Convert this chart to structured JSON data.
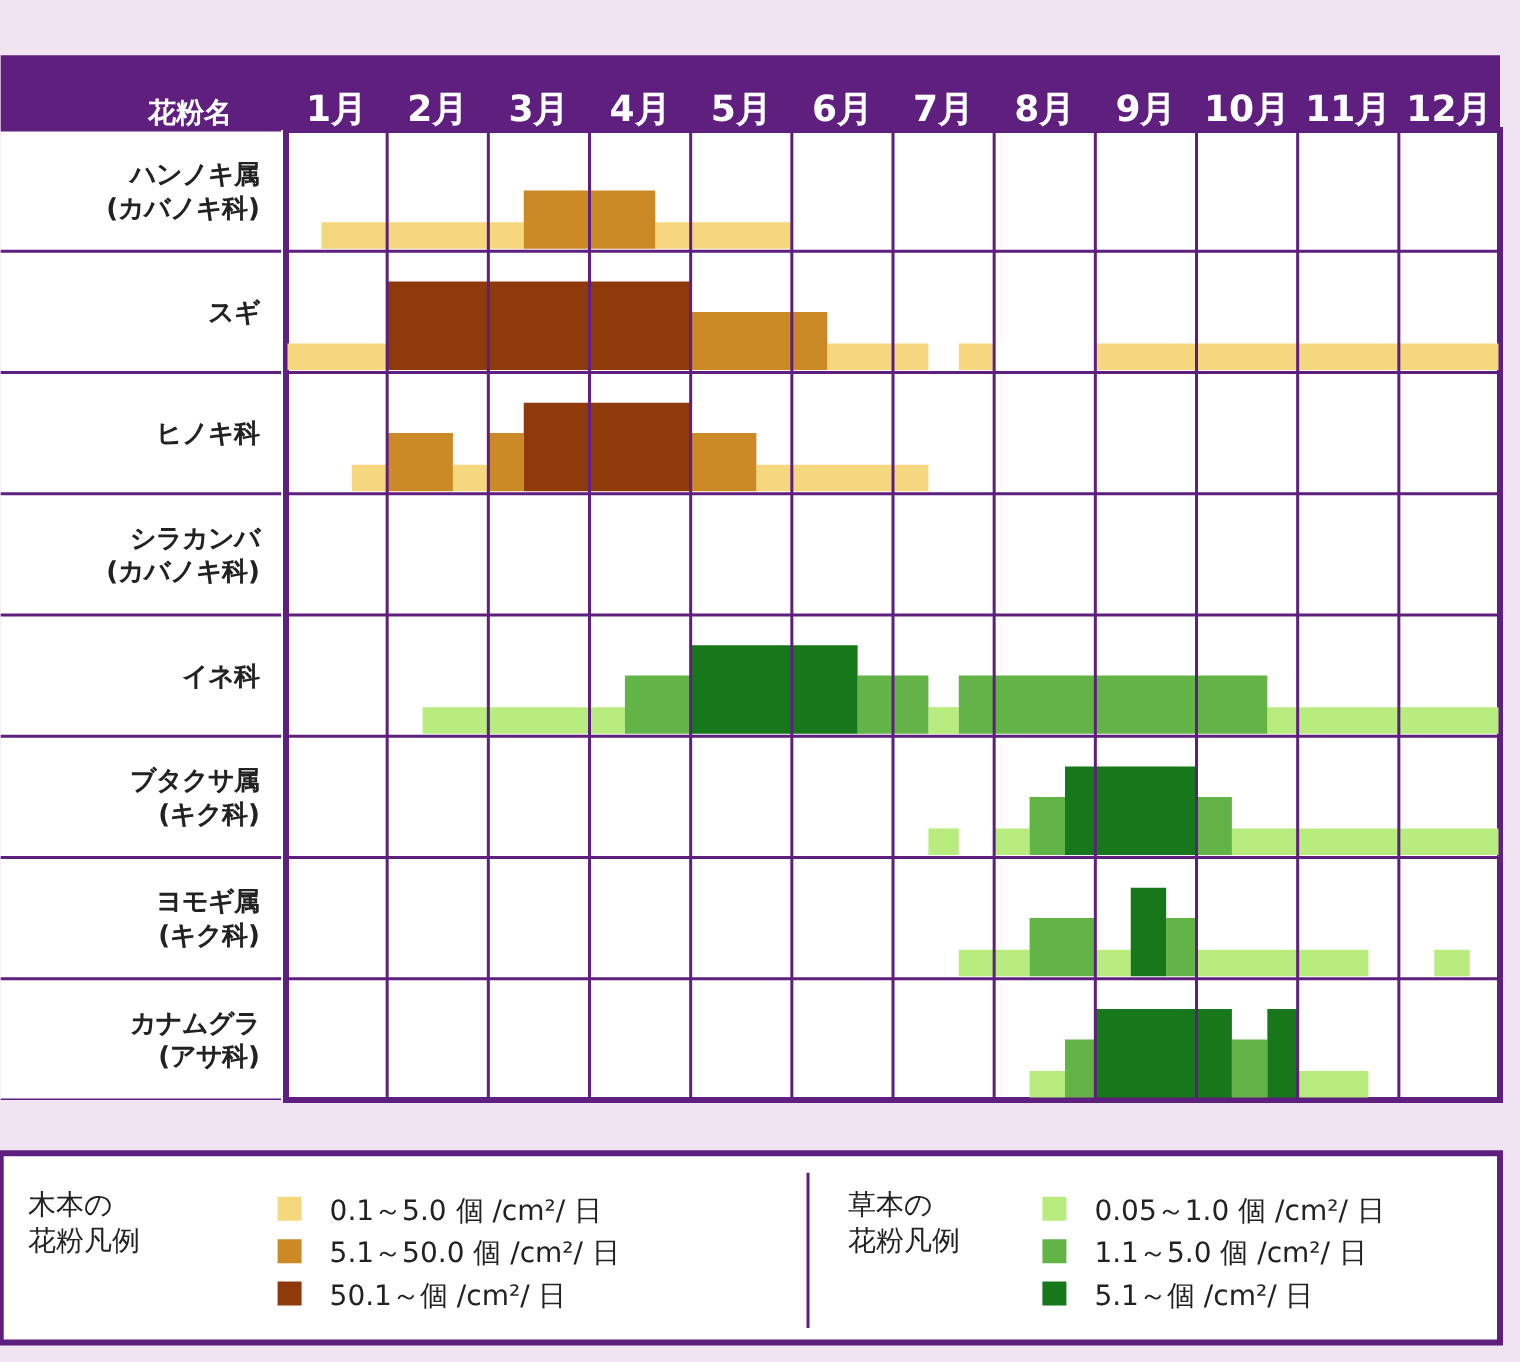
{
  "chart_data": {
    "type": "bar",
    "orientation": "horizontal",
    "ylabel": "花粉名",
    "categories": [
      "ハンノキ属\n(カバノキ科)",
      "スギ",
      "ヒノキ科",
      "シラカンバ\n(カバノキ科)",
      "イネ科",
      "ブタクサ属\n(キク科)",
      "ヨモギ属\n(キク科)",
      "カナムグラ\n(アサ科)"
    ],
    "xlim": [
      0.5,
      12.5
    ],
    "xticks": [
      {
        "value": 0.5,
        "label": null
      },
      {
        "value": 1,
        "label": "1月"
      },
      {
        "value": 1.5,
        "label": null
      },
      {
        "value": 2,
        "label": "2月"
      },
      {
        "value": 2.5,
        "label": null
      },
      {
        "value": 3,
        "label": "3月"
      },
      {
        "value": 3.5,
        "label": null
      },
      {
        "value": 4,
        "label": "4月"
      },
      {
        "value": 4.5,
        "label": null
      },
      {
        "value": 5,
        "label": "5月"
      },
      {
        "value": 5.5,
        "label": null
      },
      {
        "value": 6,
        "label": "6月"
      },
      {
        "value": 6.5,
        "label": null
      },
      {
        "value": 7,
        "label": "7月"
      },
      {
        "value": 7.5,
        "label": null
      },
      {
        "value": 8,
        "label": "8月"
      },
      {
        "value": 8.5,
        "label": null
      },
      {
        "value": 9,
        "label": "9月"
      },
      {
        "value": 9.5,
        "label": null
      },
      {
        "value": 10,
        "label": "10月"
      },
      {
        "value": 10.5,
        "label": null
      },
      {
        "value": 11,
        "label": "11月"
      },
      {
        "value": 11.5,
        "label": null
      },
      {
        "value": 12,
        "label": "12月"
      },
      {
        "value": 12.5,
        "label": null
      }
    ],
    "series": [
      {
        "name": "0.1～5.0 個 /cm²/ 日",
        "color": "#f5d77e",
        "base": [
          0.85,
          0.5,
          1.15,
          null,
          null,
          null,
          null,
          null
        ],
        "values": [
          2.0,
          1.0,
          0.35,
          null,
          null,
          null,
          null,
          null
        ]
      },
      {
        "color": "#f5d77e",
        "base": [
          4.15,
          5.85,
          2.15,
          null,
          null,
          null,
          null,
          null
        ],
        "values": [
          1.35,
          1.0,
          0.35,
          null,
          null,
          null,
          null,
          null
        ]
      },
      {
        "color": "#f5d77e",
        "base": [
          null,
          7.15,
          5.15,
          null,
          null,
          null,
          null,
          null
        ],
        "values": [
          null,
          0.35,
          1.7,
          null,
          null,
          null,
          null,
          null
        ]
      },
      {
        "color": "#f5d77e",
        "base": [
          null,
          8.5,
          null,
          null,
          null,
          null,
          null,
          null
        ],
        "values": [
          null,
          4.0,
          null,
          null,
          null,
          null,
          null,
          null
        ]
      },
      {
        "name": "5.1～50.0 個 /cm²/ 日",
        "color": "#cc8a26",
        "base": [
          2.85,
          4.5,
          1.5,
          null,
          null,
          null,
          null,
          null
        ],
        "values": [
          1.3,
          1.35,
          0.65,
          null,
          null,
          null,
          null,
          null
        ]
      },
      {
        "color": "#cc8a26",
        "base": [
          null,
          null,
          2.5,
          null,
          null,
          null,
          null,
          null
        ],
        "values": [
          null,
          null,
          0.35,
          null,
          null,
          null,
          null,
          null
        ]
      },
      {
        "color": "#cc8a26",
        "base": [
          null,
          null,
          4.5,
          null,
          null,
          null,
          null,
          null
        ],
        "values": [
          null,
          null,
          0.65,
          null,
          null,
          null,
          null,
          null
        ]
      },
      {
        "name": "50.1～個 /cm²/ 日",
        "color": "#8e3a0a",
        "base": [
          null,
          1.5,
          2.85,
          null,
          null,
          null,
          null,
          null
        ],
        "values": [
          null,
          3.0,
          1.65,
          null,
          null,
          null,
          null,
          null
        ]
      },
      {
        "name": "0.05～1.0 個 /cm²/ 日",
        "color": "#b9ec7e",
        "base": [
          null,
          null,
          null,
          null,
          1.85,
          6.85,
          7.15,
          7.85
        ],
        "values": [
          null,
          null,
          null,
          null,
          2.0,
          0.3,
          0.7,
          0.35
        ]
      },
      {
        "color": "#b9ec7e",
        "base": [
          null,
          null,
          null,
          null,
          6.85,
          7.5,
          8.5,
          10.5
        ],
        "values": [
          null,
          null,
          null,
          null,
          0.3,
          0.35,
          0.35,
          0.7
        ]
      },
      {
        "color": "#b9ec7e",
        "base": [
          null,
          null,
          null,
          null,
          10.2,
          9.85,
          9.5,
          null
        ],
        "values": [
          null,
          null,
          null,
          null,
          2.3,
          2.65,
          1.7,
          null
        ]
      },
      {
        "color": "#b9ec7e",
        "base": [
          null,
          null,
          null,
          null,
          null,
          null,
          11.85,
          null
        ],
        "values": [
          null,
          null,
          null,
          null,
          null,
          null,
          0.35,
          null
        ]
      },
      {
        "name": "1.1～5.0 個 /cm²/ 日",
        "color": "#62b447",
        "base": [
          null,
          null,
          null,
          null,
          3.85,
          7.85,
          7.85,
          8.2
        ],
        "values": [
          null,
          null,
          null,
          null,
          0.65,
          0.35,
          0.65,
          0.3
        ]
      },
      {
        "color": "#62b447",
        "base": [
          null,
          null,
          null,
          null,
          6.15,
          9.5,
          9.2,
          9.85
        ],
        "values": [
          null,
          null,
          null,
          null,
          0.7,
          0.35,
          0.3,
          0.35
        ]
      },
      {
        "color": "#62b447",
        "base": [
          null,
          null,
          null,
          null,
          7.15,
          null,
          null,
          null
        ],
        "values": [
          null,
          null,
          null,
          null,
          3.05,
          null,
          null,
          null
        ]
      },
      {
        "name": "5.1～個 /cm²/ 日",
        "color": "#16781a",
        "base": [
          null,
          null,
          null,
          null,
          4.5,
          8.2,
          8.85,
          8.5
        ],
        "values": [
          null,
          null,
          null,
          null,
          1.65,
          1.3,
          0.35,
          1.35
        ]
      },
      {
        "color": "#16781a",
        "base": [
          null,
          null,
          null,
          null,
          null,
          null,
          null,
          10.2
        ],
        "values": [
          null,
          null,
          null,
          null,
          null,
          null,
          null,
          0.3
        ]
      }
    ],
    "annotations": [
      "木本の花粉凡例",
      "草本の花粉凡例"
    ],
    "grid": true,
    "legend": "bottom"
  }
}
